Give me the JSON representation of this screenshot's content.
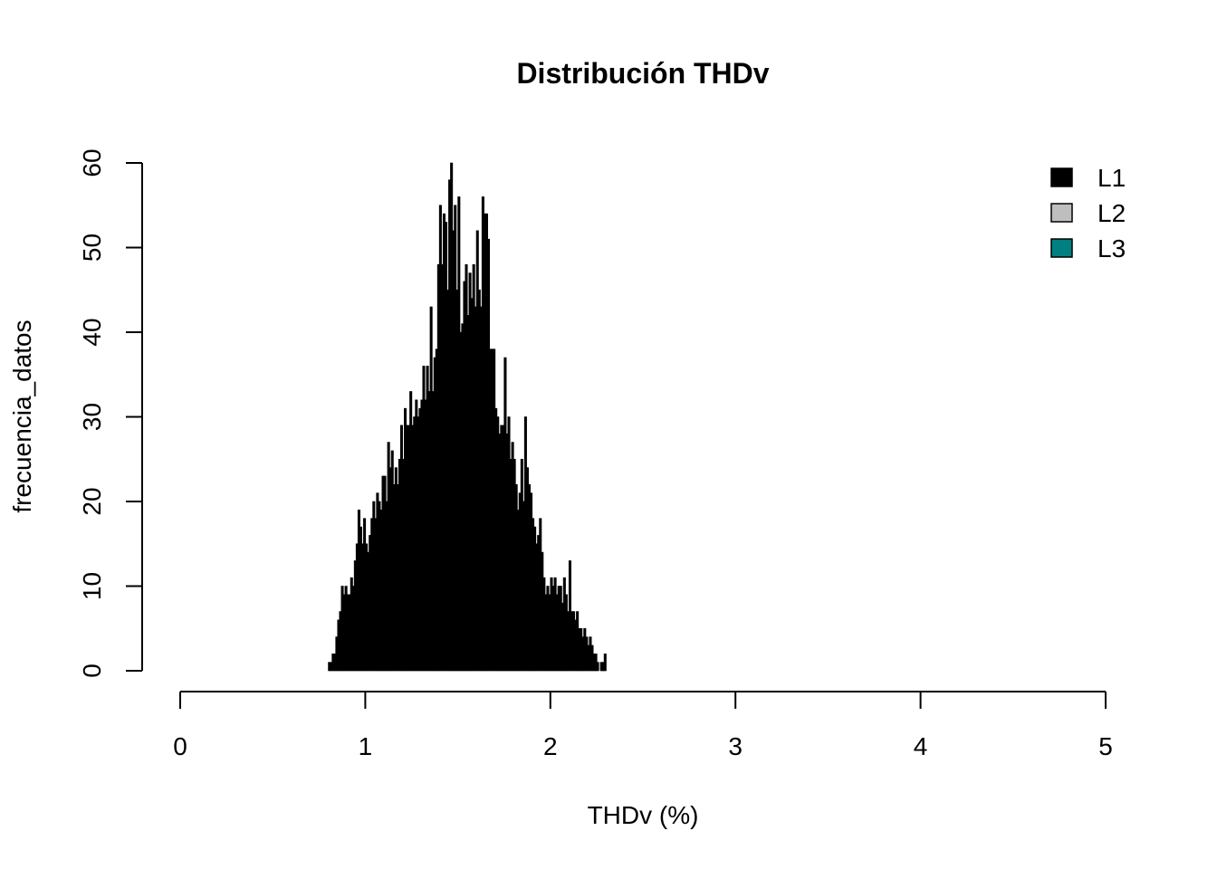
{
  "chart_data": {
    "type": "bar",
    "title": "Distribución THDv",
    "xlabel": "THDv (%)",
    "ylabel": "frecuencia_datos",
    "xlim": [
      0,
      5
    ],
    "ylim": [
      0,
      60
    ],
    "x_ticks": [
      "0",
      "1",
      "2",
      "3",
      "4",
      "5"
    ],
    "y_ticks": [
      "0",
      "10",
      "20",
      "30",
      "40",
      "50",
      "60"
    ],
    "grid": false,
    "legend_position": "top-right",
    "legend": [
      {
        "name": "L1",
        "color": "#000000"
      },
      {
        "name": "L2",
        "color": "#BEBEBE"
      },
      {
        "name": "L3",
        "color": "#008080"
      }
    ],
    "bin_width": 0.01,
    "bins": [
      {
        "x": 0.8,
        "y": 1
      },
      {
        "x": 0.81,
        "y": 1
      },
      {
        "x": 0.82,
        "y": 2
      },
      {
        "x": 0.83,
        "y": 2
      },
      {
        "x": 0.84,
        "y": 4
      },
      {
        "x": 0.85,
        "y": 6
      },
      {
        "x": 0.86,
        "y": 7
      },
      {
        "x": 0.87,
        "y": 10
      },
      {
        "x": 0.88,
        "y": 9
      },
      {
        "x": 0.89,
        "y": 10
      },
      {
        "x": 0.9,
        "y": 9
      },
      {
        "x": 0.91,
        "y": 9
      },
      {
        "x": 0.92,
        "y": 11
      },
      {
        "x": 0.93,
        "y": 10
      },
      {
        "x": 0.94,
        "y": 13
      },
      {
        "x": 0.95,
        "y": 15
      },
      {
        "x": 0.96,
        "y": 19
      },
      {
        "x": 0.97,
        "y": 17
      },
      {
        "x": 0.98,
        "y": 15
      },
      {
        "x": 0.99,
        "y": 18
      },
      {
        "x": 1.0,
        "y": 15
      },
      {
        "x": 1.01,
        "y": 14
      },
      {
        "x": 1.02,
        "y": 16
      },
      {
        "x": 1.03,
        "y": 18
      },
      {
        "x": 1.04,
        "y": 20
      },
      {
        "x": 1.05,
        "y": 18
      },
      {
        "x": 1.06,
        "y": 21
      },
      {
        "x": 1.07,
        "y": 20
      },
      {
        "x": 1.08,
        "y": 19
      },
      {
        "x": 1.09,
        "y": 23
      },
      {
        "x": 1.1,
        "y": 23
      },
      {
        "x": 1.11,
        "y": 20
      },
      {
        "x": 1.12,
        "y": 27
      },
      {
        "x": 1.13,
        "y": 24
      },
      {
        "x": 1.14,
        "y": 26
      },
      {
        "x": 1.15,
        "y": 22
      },
      {
        "x": 1.16,
        "y": 24
      },
      {
        "x": 1.17,
        "y": 22
      },
      {
        "x": 1.18,
        "y": 25
      },
      {
        "x": 1.19,
        "y": 29
      },
      {
        "x": 1.2,
        "y": 25
      },
      {
        "x": 1.21,
        "y": 31
      },
      {
        "x": 1.22,
        "y": 29
      },
      {
        "x": 1.23,
        "y": 29
      },
      {
        "x": 1.24,
        "y": 33
      },
      {
        "x": 1.25,
        "y": 29
      },
      {
        "x": 1.26,
        "y": 30
      },
      {
        "x": 1.27,
        "y": 32
      },
      {
        "x": 1.28,
        "y": 30
      },
      {
        "x": 1.29,
        "y": 31
      },
      {
        "x": 1.3,
        "y": 32
      },
      {
        "x": 1.31,
        "y": 36
      },
      {
        "x": 1.32,
        "y": 32
      },
      {
        "x": 1.33,
        "y": 36
      },
      {
        "x": 1.34,
        "y": 33
      },
      {
        "x": 1.35,
        "y": 43
      },
      {
        "x": 1.36,
        "y": 33
      },
      {
        "x": 1.37,
        "y": 37
      },
      {
        "x": 1.38,
        "y": 38
      },
      {
        "x": 1.39,
        "y": 48
      },
      {
        "x": 1.4,
        "y": 55
      },
      {
        "x": 1.41,
        "y": 48
      },
      {
        "x": 1.42,
        "y": 54
      },
      {
        "x": 1.43,
        "y": 53
      },
      {
        "x": 1.44,
        "y": 45
      },
      {
        "x": 1.45,
        "y": 58
      },
      {
        "x": 1.46,
        "y": 60
      },
      {
        "x": 1.47,
        "y": 52
      },
      {
        "x": 1.48,
        "y": 55
      },
      {
        "x": 1.49,
        "y": 45
      },
      {
        "x": 1.5,
        "y": 56
      },
      {
        "x": 1.51,
        "y": 40
      },
      {
        "x": 1.52,
        "y": 41
      },
      {
        "x": 1.53,
        "y": 46
      },
      {
        "x": 1.54,
        "y": 48
      },
      {
        "x": 1.55,
        "y": 42
      },
      {
        "x": 1.56,
        "y": 47
      },
      {
        "x": 1.57,
        "y": 44
      },
      {
        "x": 1.58,
        "y": 48
      },
      {
        "x": 1.59,
        "y": 43
      },
      {
        "x": 1.6,
        "y": 52
      },
      {
        "x": 1.61,
        "y": 45
      },
      {
        "x": 1.62,
        "y": 43
      },
      {
        "x": 1.63,
        "y": 56
      },
      {
        "x": 1.64,
        "y": 54
      },
      {
        "x": 1.65,
        "y": 54
      },
      {
        "x": 1.66,
        "y": 51
      },
      {
        "x": 1.67,
        "y": 38
      },
      {
        "x": 1.68,
        "y": 38
      },
      {
        "x": 1.69,
        "y": 38
      },
      {
        "x": 1.7,
        "y": 31
      },
      {
        "x": 1.71,
        "y": 30
      },
      {
        "x": 1.72,
        "y": 28
      },
      {
        "x": 1.73,
        "y": 29
      },
      {
        "x": 1.74,
        "y": 29
      },
      {
        "x": 1.75,
        "y": 37
      },
      {
        "x": 1.76,
        "y": 28
      },
      {
        "x": 1.77,
        "y": 30
      },
      {
        "x": 1.78,
        "y": 25
      },
      {
        "x": 1.79,
        "y": 27
      },
      {
        "x": 1.8,
        "y": 25
      },
      {
        "x": 1.81,
        "y": 22
      },
      {
        "x": 1.82,
        "y": 19
      },
      {
        "x": 1.83,
        "y": 21
      },
      {
        "x": 1.84,
        "y": 25
      },
      {
        "x": 1.85,
        "y": 20
      },
      {
        "x": 1.86,
        "y": 30
      },
      {
        "x": 1.87,
        "y": 24
      },
      {
        "x": 1.88,
        "y": 22
      },
      {
        "x": 1.89,
        "y": 21
      },
      {
        "x": 1.9,
        "y": 18
      },
      {
        "x": 1.91,
        "y": 17
      },
      {
        "x": 1.92,
        "y": 15
      },
      {
        "x": 1.93,
        "y": 16
      },
      {
        "x": 1.94,
        "y": 18
      },
      {
        "x": 1.95,
        "y": 14
      },
      {
        "x": 1.96,
        "y": 11
      },
      {
        "x": 1.97,
        "y": 9
      },
      {
        "x": 1.98,
        "y": 10
      },
      {
        "x": 1.99,
        "y": 9
      },
      {
        "x": 2.0,
        "y": 11
      },
      {
        "x": 2.01,
        "y": 10
      },
      {
        "x": 2.02,
        "y": 11
      },
      {
        "x": 2.03,
        "y": 9
      },
      {
        "x": 2.04,
        "y": 10
      },
      {
        "x": 2.05,
        "y": 10
      },
      {
        "x": 2.06,
        "y": 8
      },
      {
        "x": 2.07,
        "y": 11
      },
      {
        "x": 2.08,
        "y": 9
      },
      {
        "x": 2.09,
        "y": 7
      },
      {
        "x": 2.1,
        "y": 13
      },
      {
        "x": 2.11,
        "y": 7
      },
      {
        "x": 2.12,
        "y": 7
      },
      {
        "x": 2.13,
        "y": 6
      },
      {
        "x": 2.14,
        "y": 7
      },
      {
        "x": 2.15,
        "y": 5
      },
      {
        "x": 2.16,
        "y": 5
      },
      {
        "x": 2.17,
        "y": 4
      },
      {
        "x": 2.18,
        "y": 5
      },
      {
        "x": 2.19,
        "y": 4
      },
      {
        "x": 2.2,
        "y": 3
      },
      {
        "x": 2.21,
        "y": 4
      },
      {
        "x": 2.22,
        "y": 3
      },
      {
        "x": 2.23,
        "y": 2
      },
      {
        "x": 2.24,
        "y": 2
      },
      {
        "x": 2.25,
        "y": 1
      },
      {
        "x": 2.26,
        "y": 0
      },
      {
        "x": 2.27,
        "y": 1
      },
      {
        "x": 2.28,
        "y": 1
      },
      {
        "x": 2.29,
        "y": 2
      }
    ]
  }
}
